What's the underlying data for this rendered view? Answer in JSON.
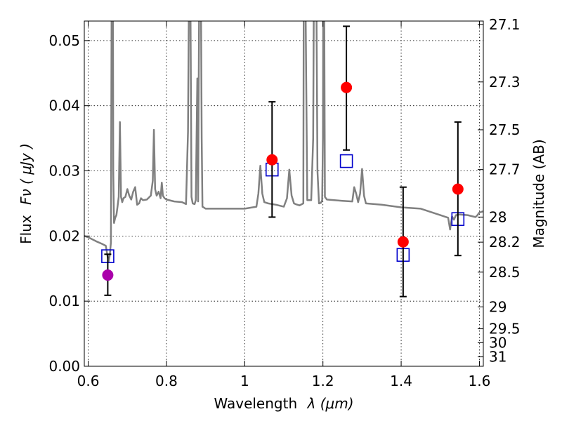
{
  "chart_data": {
    "type": "scatter",
    "xlabel": "Wavelength",
    "xlabel_math": "λ (μm)",
    "ylabel": "Flux",
    "ylabel_math": "Fν ( μJy )",
    "y2label": "Magnitude (AB)",
    "xlim": [
      0.59,
      1.61
    ],
    "ylim": [
      0.0,
      0.053
    ],
    "grid": true,
    "x_ticks": [
      0.6,
      0.8,
      1.0,
      1.2,
      1.4,
      1.6
    ],
    "x_tick_labels": [
      "0.6",
      "0.8",
      "1",
      "1.2",
      "1.4",
      "1.6"
    ],
    "y_ticks": [
      0.0,
      0.01,
      0.02,
      0.03,
      0.04,
      0.05
    ],
    "y_tick_labels": [
      "0.00",
      "0.01",
      "0.02",
      "0.03",
      "0.04",
      "0.05"
    ],
    "y2_ticks": [
      {
        "label": "27.1",
        "mag": 27.1
      },
      {
        "label": "27.3",
        "mag": 27.3
      },
      {
        "label": "27.5",
        "mag": 27.5
      },
      {
        "label": "27.7",
        "mag": 27.7
      },
      {
        "label": "28",
        "mag": 28.0
      },
      {
        "label": "28.2",
        "mag": 28.2
      },
      {
        "label": "28.5",
        "mag": 28.5
      },
      {
        "label": "29",
        "mag": 29.0
      },
      {
        "label": "29.5",
        "mag": 29.5
      },
      {
        "label": "30",
        "mag": 30.0
      },
      {
        "label": "31",
        "mag": 31.0
      }
    ],
    "series": [
      {
        "kind": "line",
        "color": "#808080",
        "x": [
          0.59,
          0.6,
          0.62,
          0.635,
          0.645,
          0.652,
          0.655,
          0.658,
          0.66,
          0.661,
          0.662,
          0.663,
          0.664,
          0.666,
          0.669,
          0.672,
          0.675,
          0.678,
          0.681,
          0.684,
          0.687,
          0.69,
          0.695,
          0.7,
          0.705,
          0.71,
          0.715,
          0.72,
          0.725,
          0.73,
          0.735,
          0.74,
          0.75,
          0.76,
          0.765,
          0.768,
          0.771,
          0.775,
          0.78,
          0.785,
          0.788,
          0.791,
          0.795,
          0.8,
          0.82,
          0.84,
          0.85,
          0.855,
          0.858,
          0.861,
          0.864,
          0.867,
          0.872,
          0.875,
          0.877,
          0.879,
          0.881,
          0.884,
          0.886,
          0.888,
          0.89,
          0.892,
          0.895,
          0.9,
          0.95,
          1.0,
          1.03,
          1.035,
          1.04,
          1.045,
          1.05,
          1.06,
          1.08,
          1.1,
          1.108,
          1.114,
          1.12,
          1.126,
          1.13,
          1.14,
          1.15,
          1.151,
          1.153,
          1.155,
          1.16,
          1.17,
          1.175,
          1.177,
          1.179,
          1.181,
          1.183,
          1.186,
          1.19,
          1.195,
          1.198,
          1.2,
          1.201,
          1.203,
          1.205,
          1.21,
          1.25,
          1.275,
          1.28,
          1.285,
          1.29,
          1.295,
          1.3,
          1.305,
          1.31,
          1.35,
          1.4,
          1.45,
          1.5,
          1.52,
          1.525,
          1.53,
          1.535,
          1.54,
          1.55,
          1.57,
          1.59,
          1.595,
          1.6,
          1.61
        ],
        "y": [
          0.02,
          0.0198,
          0.0192,
          0.0188,
          0.0185,
          0.016,
          0.017,
          0.019,
          0.06,
          0.06,
          0.06,
          0.06,
          0.03,
          0.022,
          0.0228,
          0.0232,
          0.0245,
          0.026,
          0.0375,
          0.026,
          0.0252,
          0.0258,
          0.026,
          0.0272,
          0.0262,
          0.0256,
          0.0268,
          0.0275,
          0.0248,
          0.025,
          0.0258,
          0.0255,
          0.0256,
          0.0262,
          0.0285,
          0.0363,
          0.0272,
          0.0262,
          0.0268,
          0.0258,
          0.0282,
          0.0262,
          0.0258,
          0.0256,
          0.0253,
          0.0252,
          0.0249,
          0.036,
          0.06,
          0.06,
          0.026,
          0.025,
          0.0249,
          0.0255,
          0.035,
          0.0442,
          0.0253,
          0.06,
          0.06,
          0.06,
          0.035,
          0.0245,
          0.0244,
          0.0242,
          0.0242,
          0.0242,
          0.0245,
          0.0265,
          0.0308,
          0.0265,
          0.0252,
          0.025,
          0.0248,
          0.0245,
          0.0258,
          0.0302,
          0.0262,
          0.025,
          0.0249,
          0.0247,
          0.025,
          0.06,
          0.06,
          0.06,
          0.0255,
          0.0255,
          0.035,
          0.06,
          0.06,
          0.06,
          0.06,
          0.03,
          0.025,
          0.0251,
          0.0255,
          0.035,
          0.06,
          0.06,
          0.026,
          0.0256,
          0.0254,
          0.0253,
          0.0275,
          0.0265,
          0.0252,
          0.0265,
          0.0303,
          0.0262,
          0.025,
          0.0248,
          0.0244,
          0.0242,
          0.0232,
          0.0228,
          0.021,
          0.023,
          0.0225,
          0.0232,
          0.0233,
          0.0232,
          0.0229,
          0.0232,
          0.0236,
          0.0238
        ]
      },
      {
        "kind": "squares",
        "color": "#0000cc",
        "x": [
          0.65,
          1.07,
          1.26,
          1.405,
          1.545
        ],
        "y": [
          0.0169,
          0.0302,
          0.0315,
          0.0171,
          0.0226
        ]
      },
      {
        "kind": "points_with_errors",
        "x": [
          0.65,
          1.07,
          1.26,
          1.405,
          1.545
        ],
        "y": [
          0.014,
          0.0317,
          0.0428,
          0.0191,
          0.0272
        ],
        "yerr_low": [
          0.0109,
          0.0229,
          0.0332,
          0.0107,
          0.017
        ],
        "yerr_high": [
          0.0172,
          0.0406,
          0.0522,
          0.0275,
          0.0375
        ],
        "colors": [
          "#aa00aa",
          "#ff0000",
          "#ff0000",
          "#ff0000",
          "#ff0000"
        ]
      }
    ]
  }
}
